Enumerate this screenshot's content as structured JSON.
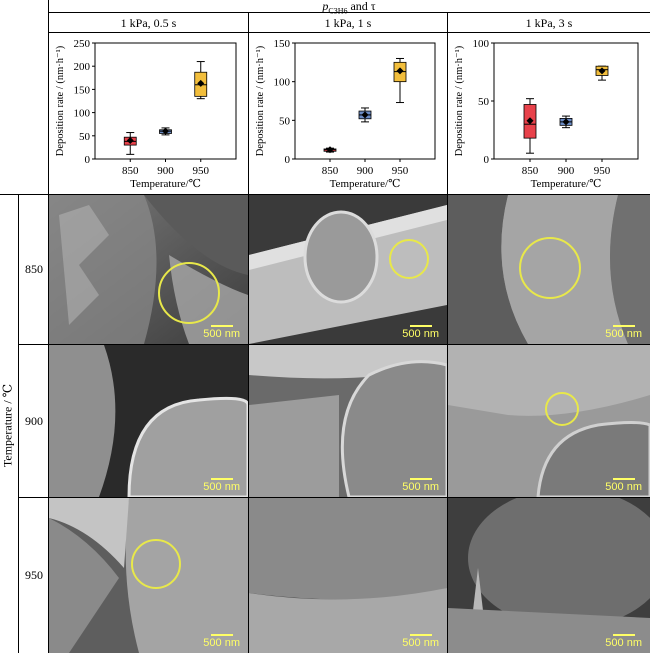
{
  "header": {
    "title_main": "p",
    "title_sub": "C3H6",
    "title_rest": " and τ"
  },
  "columns": [
    {
      "label": "1 kPa, 0.5 s"
    },
    {
      "label": "1 kPa, 1 s"
    },
    {
      "label": "1 kPa, 3 s"
    }
  ],
  "row_axis_label": "Temperature / ℃",
  "rows": [
    {
      "label": "850"
    },
    {
      "label": "900"
    },
    {
      "label": "950"
    }
  ],
  "scale_bar_label": "500 nm",
  "colors": {
    "box_850": "#e8424b",
    "box_900": "#6b8bc4",
    "box_950": "#f2be3c",
    "marker_circle": "#e8e84a",
    "scale": "#ffff66"
  },
  "chart_data": [
    {
      "type": "box",
      "ylabel": "Deposition rate / (nm·h⁻¹)",
      "xlabel": "Temperature/℃",
      "categories": [
        "850",
        "900",
        "950"
      ],
      "ylim": [
        0,
        250
      ],
      "yticks": [
        0,
        50,
        100,
        150,
        200,
        250
      ],
      "boxes": [
        {
          "min": 10,
          "q1": 30,
          "median": 38,
          "q3": 47,
          "max": 57,
          "mean": 40
        },
        {
          "min": 52,
          "q1": 55,
          "median": 60,
          "q3": 63,
          "max": 67,
          "mean": 60
        },
        {
          "min": 130,
          "q1": 135,
          "median": 160,
          "q3": 187,
          "max": 210,
          "mean": 163
        }
      ]
    },
    {
      "type": "box",
      "ylabel": "Deposition rate / (nm·h⁻¹)",
      "xlabel": "Temperature/℃",
      "categories": [
        "850",
        "900",
        "950"
      ],
      "ylim": [
        0,
        150
      ],
      "yticks": [
        0,
        50,
        100,
        150
      ],
      "boxes": [
        {
          "min": 9,
          "q1": 10,
          "median": 12,
          "q3": 13,
          "max": 14,
          "mean": 12
        },
        {
          "min": 48,
          "q1": 52,
          "median": 57,
          "q3": 62,
          "max": 66,
          "mean": 57
        },
        {
          "min": 73,
          "q1": 100,
          "median": 113,
          "q3": 125,
          "max": 130,
          "mean": 114
        }
      ]
    },
    {
      "type": "box",
      "ylabel": "Deposition rate / (nm·h⁻¹)",
      "xlabel": "Temperature/℃",
      "categories": [
        "850",
        "900",
        "950"
      ],
      "ylim": [
        0,
        100
      ],
      "yticks": [
        0,
        50,
        100
      ],
      "boxes": [
        {
          "min": 5,
          "q1": 18,
          "median": 30,
          "q3": 47,
          "max": 52,
          "mean": 33
        },
        {
          "min": 27,
          "q1": 29,
          "median": 32,
          "q3": 35,
          "max": 37,
          "mean": 32
        },
        {
          "min": 68,
          "q1": 72,
          "median": 77,
          "q3": 80,
          "max": 80,
          "mean": 76
        }
      ]
    }
  ]
}
